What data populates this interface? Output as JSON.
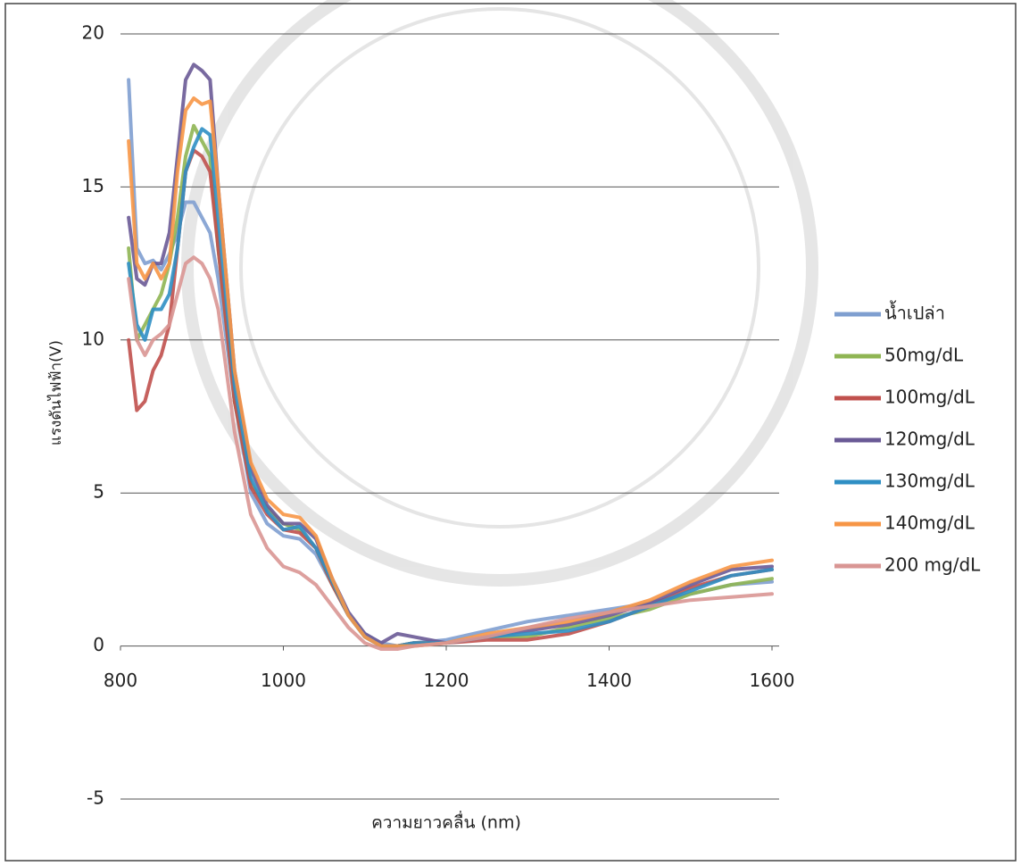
{
  "chart_data": {
    "type": "line",
    "y_label": "แรงดันไฟฟ้า(V)",
    "x_label": "ความยาวคลื่น (nm)",
    "xlim": [
      800,
      1600
    ],
    "ylim": [
      -5,
      20
    ],
    "xticks": [
      800,
      1000,
      1200,
      1400,
      1600
    ],
    "yticks": [
      20,
      15,
      10,
      5,
      0,
      -5
    ],
    "grid": true,
    "legend": "right",
    "x": [
      810,
      820,
      830,
      840,
      850,
      860,
      870,
      880,
      890,
      900,
      910,
      920,
      940,
      960,
      980,
      1000,
      1020,
      1040,
      1060,
      1080,
      1100,
      1120,
      1140,
      1160,
      1200,
      1250,
      1300,
      1350,
      1400,
      1450,
      1500,
      1550,
      1600
    ],
    "series": [
      {
        "name": "น้ำเปล่า",
        "color": "#7f9fd0",
        "values": [
          18.5,
          13,
          12.5,
          12.6,
          12.3,
          12.8,
          13.5,
          14.5,
          14.5,
          14,
          13.5,
          12,
          8,
          5,
          4,
          3.6,
          3.5,
          3,
          2,
          1,
          0.4,
          0.1,
          0,
          0.1,
          0.2,
          0.5,
          0.8,
          1,
          1.2,
          1.4,
          1.7,
          2.0,
          2.1
        ]
      },
      {
        "name": "50mg/dL",
        "color": "#8fb553",
        "values": [
          13,
          10,
          10.5,
          11,
          11.5,
          12.5,
          14,
          16,
          17,
          16.5,
          16,
          13,
          8,
          5.3,
          4.5,
          4,
          3.8,
          3.2,
          2,
          1,
          0.3,
          0,
          0,
          0.1,
          0.1,
          0.3,
          0.3,
          0.6,
          0.9,
          1.2,
          1.7,
          2.0,
          2.2
        ]
      },
      {
        "name": "100mg/dL",
        "color": "#c0504d",
        "values": [
          10,
          7.7,
          8,
          9,
          9.5,
          10.5,
          13,
          15.5,
          16.2,
          16,
          15.5,
          13,
          8,
          5.2,
          4.3,
          3.8,
          3.7,
          3.2,
          2,
          1,
          0.3,
          0,
          0,
          0.1,
          0.1,
          0.2,
          0.2,
          0.4,
          0.8,
          1.3,
          1.9,
          2.3,
          2.5
        ]
      },
      {
        "name": "120mg/dL",
        "color": "#6a5a96",
        "values": [
          14,
          12,
          11.8,
          12.5,
          12.5,
          13.5,
          16,
          18.5,
          19,
          18.8,
          18.5,
          15,
          9,
          5.8,
          4.6,
          4,
          4,
          3.5,
          2.2,
          1.1,
          0.4,
          0.1,
          0.4,
          0.3,
          0.1,
          0.3,
          0.5,
          0.7,
          1,
          1.4,
          2,
          2.5,
          2.6
        ]
      },
      {
        "name": "130mg/dL",
        "color": "#2f8fc4",
        "values": [
          12.5,
          10.5,
          10,
          11,
          11,
          11.5,
          13,
          15.5,
          16.3,
          16.9,
          16.7,
          14,
          8.5,
          5.5,
          4.4,
          3.8,
          3.9,
          3.2,
          2.1,
          1,
          0.3,
          0,
          0,
          0.1,
          0.1,
          0.3,
          0.4,
          0.5,
          0.8,
          1.3,
          1.8,
          2.3,
          2.5
        ]
      },
      {
        "name": "140mg/dL",
        "color": "#f79646",
        "values": [
          16.5,
          12.5,
          12,
          12.5,
          12,
          12.5,
          15.5,
          17.5,
          17.9,
          17.7,
          17.8,
          15,
          9,
          6,
          4.8,
          4.3,
          4.2,
          3.6,
          2.2,
          1,
          0.3,
          0,
          0,
          0,
          0.1,
          0.4,
          0.6,
          0.8,
          1.1,
          1.5,
          2.1,
          2.6,
          2.8
        ]
      },
      {
        "name": "200 mg/dL",
        "color": "#d99694",
        "values": [
          12,
          10,
          9.5,
          10,
          10.2,
          10.5,
          11.5,
          12.5,
          12.7,
          12.5,
          12,
          11,
          7,
          4.3,
          3.2,
          2.6,
          2.4,
          2,
          1.3,
          0.6,
          0.1,
          -0.1,
          -0.1,
          0,
          0.1,
          0.3,
          0.6,
          0.9,
          1.1,
          1.3,
          1.5,
          1.6,
          1.7
        ]
      }
    ]
  }
}
